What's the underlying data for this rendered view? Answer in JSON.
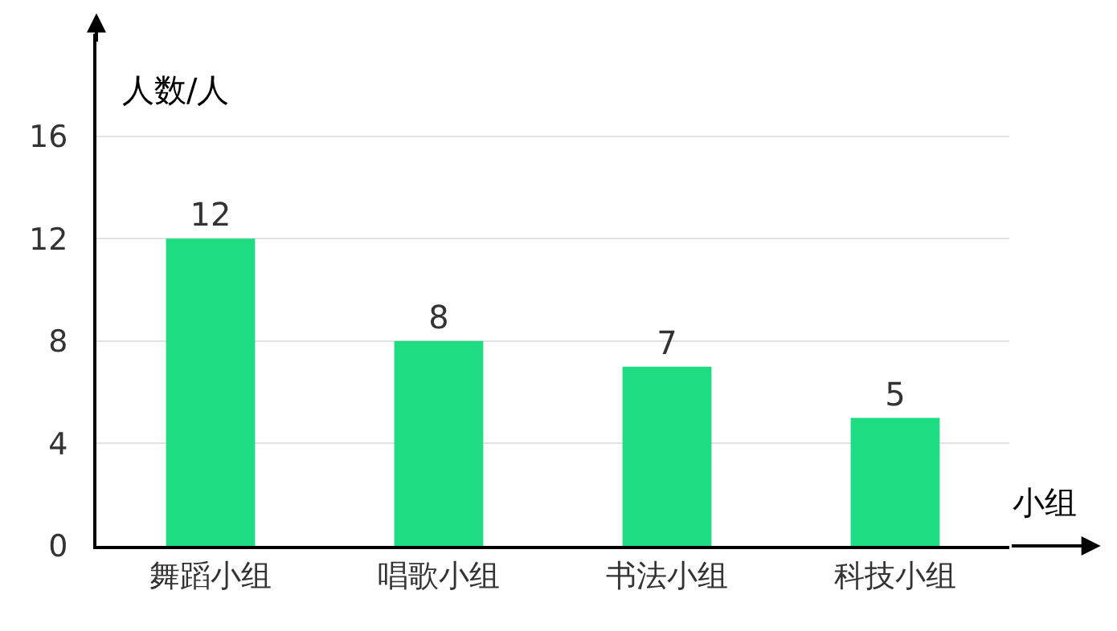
{
  "chart_data": {
    "type": "bar",
    "xlabel": "小组",
    "ylabel": "人数/人",
    "categories": [
      "舞蹈小组",
      "唱歌小组",
      "书法小组",
      "科技小组"
    ],
    "values": [
      12,
      8,
      7,
      5
    ],
    "color": "#1edc82",
    "ylim": [
      0,
      20
    ],
    "yticks": [
      0,
      4,
      8,
      12,
      16
    ],
    "grid": "y",
    "data_labels": true
  }
}
